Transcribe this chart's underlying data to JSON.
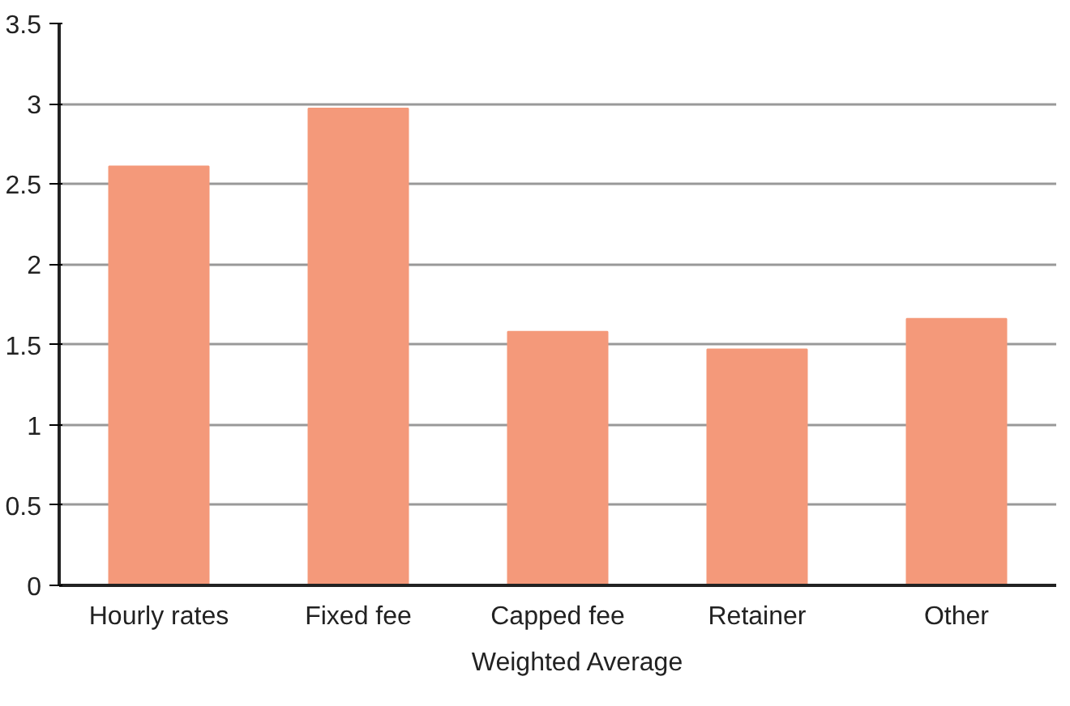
{
  "chart_data": {
    "type": "bar",
    "categories": [
      "Hourly rates",
      "Fixed fee",
      "Capped fee",
      "Retainer",
      "Other"
    ],
    "series": [
      {
        "name": "Weighted Average",
        "color": "#f4997a",
        "values": [
          2.61,
          2.97,
          1.58,
          1.47,
          1.66
        ]
      }
    ],
    "ylim": [
      0,
      3.5
    ],
    "yticks": [
      0,
      0.5,
      1,
      1.5,
      2,
      2.5,
      3,
      3.5
    ],
    "grid": "y",
    "legend": "bottom"
  }
}
